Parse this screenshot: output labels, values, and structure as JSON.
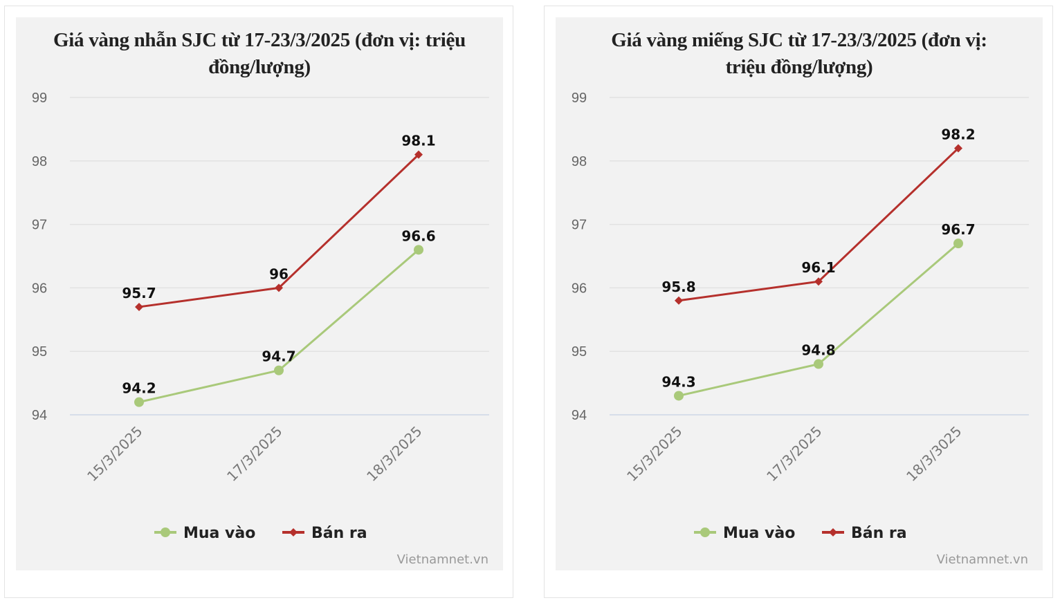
{
  "colors": {
    "buy": "#a9c97a",
    "sell": "#b5302c",
    "background": "#f2f2f2"
  },
  "watermark": "Vietnamnet.vn",
  "chart_data": [
    {
      "type": "line",
      "title": "Giá vàng nhẫn SJC từ 17-23/3/2025 (đơn vị: triệu đồng/lượng)",
      "categories": [
        "15/3/2025",
        "17/3/2025",
        "18/3/2025"
      ],
      "ylim": [
        94,
        99
      ],
      "yticks": [
        94,
        95,
        96,
        97,
        98,
        99
      ],
      "grid": true,
      "legend": "bottom",
      "series": [
        {
          "name": "Mua vào",
          "values": [
            94.2,
            94.7,
            96.6
          ],
          "marker": "circle"
        },
        {
          "name": "Bán ra",
          "values": [
            95.7,
            96,
            98.1
          ],
          "marker": "diamond"
        }
      ]
    },
    {
      "type": "line",
      "title": "Giá vàng miếng SJC từ 17-23/3/2025 (đơn vị: triệu đồng/lượng)",
      "categories": [
        "15/3/2025",
        "17/3/2025",
        "18/3/3025"
      ],
      "ylim": [
        94,
        99
      ],
      "yticks": [
        94,
        95,
        96,
        97,
        98,
        99
      ],
      "grid": true,
      "legend": "bottom",
      "series": [
        {
          "name": "Mua vào",
          "values": [
            94.3,
            94.8,
            96.7
          ],
          "marker": "circle"
        },
        {
          "name": "Bán ra",
          "values": [
            95.8,
            96.1,
            98.2
          ],
          "marker": "diamond"
        }
      ]
    }
  ]
}
